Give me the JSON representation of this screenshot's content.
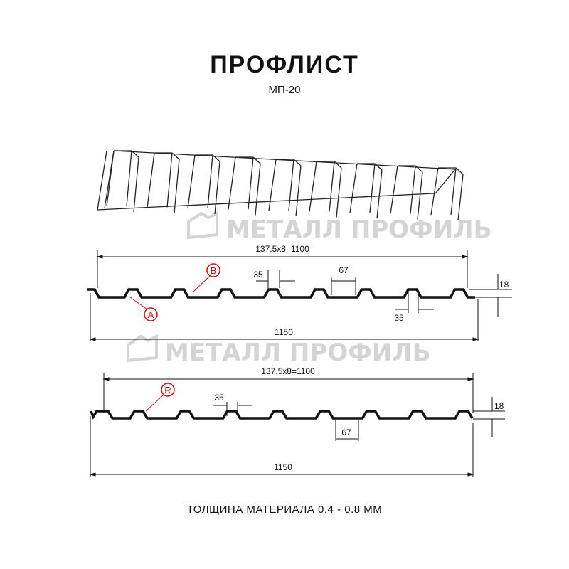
{
  "header": {
    "title": "ПРОФЛИСТ",
    "subtitle": "МП-20"
  },
  "watermark": {
    "text": "МЕТАЛЛ ПРОФИЛЬ",
    "color": "#d4d4d4"
  },
  "profile_top": {
    "pitch_label": "137,5x8=1100",
    "total_label": "1150",
    "top_width_label": "35",
    "bottom_width_label": "35",
    "rib_label": "67",
    "height_label": "18",
    "callout_a": "A",
    "callout_b": "B"
  },
  "profile_bottom": {
    "pitch_label": "137.5x8=1100",
    "total_label": "1150",
    "top_width_label": "35",
    "rib_label": "67",
    "height_label": "18",
    "callout_r": "R"
  },
  "footer": {
    "text": "ТОЛЩИНА МАТЕРИАЛА 0.4 - 0.8 ММ"
  },
  "colors": {
    "profile": "#111111",
    "callout": "#e00000"
  }
}
